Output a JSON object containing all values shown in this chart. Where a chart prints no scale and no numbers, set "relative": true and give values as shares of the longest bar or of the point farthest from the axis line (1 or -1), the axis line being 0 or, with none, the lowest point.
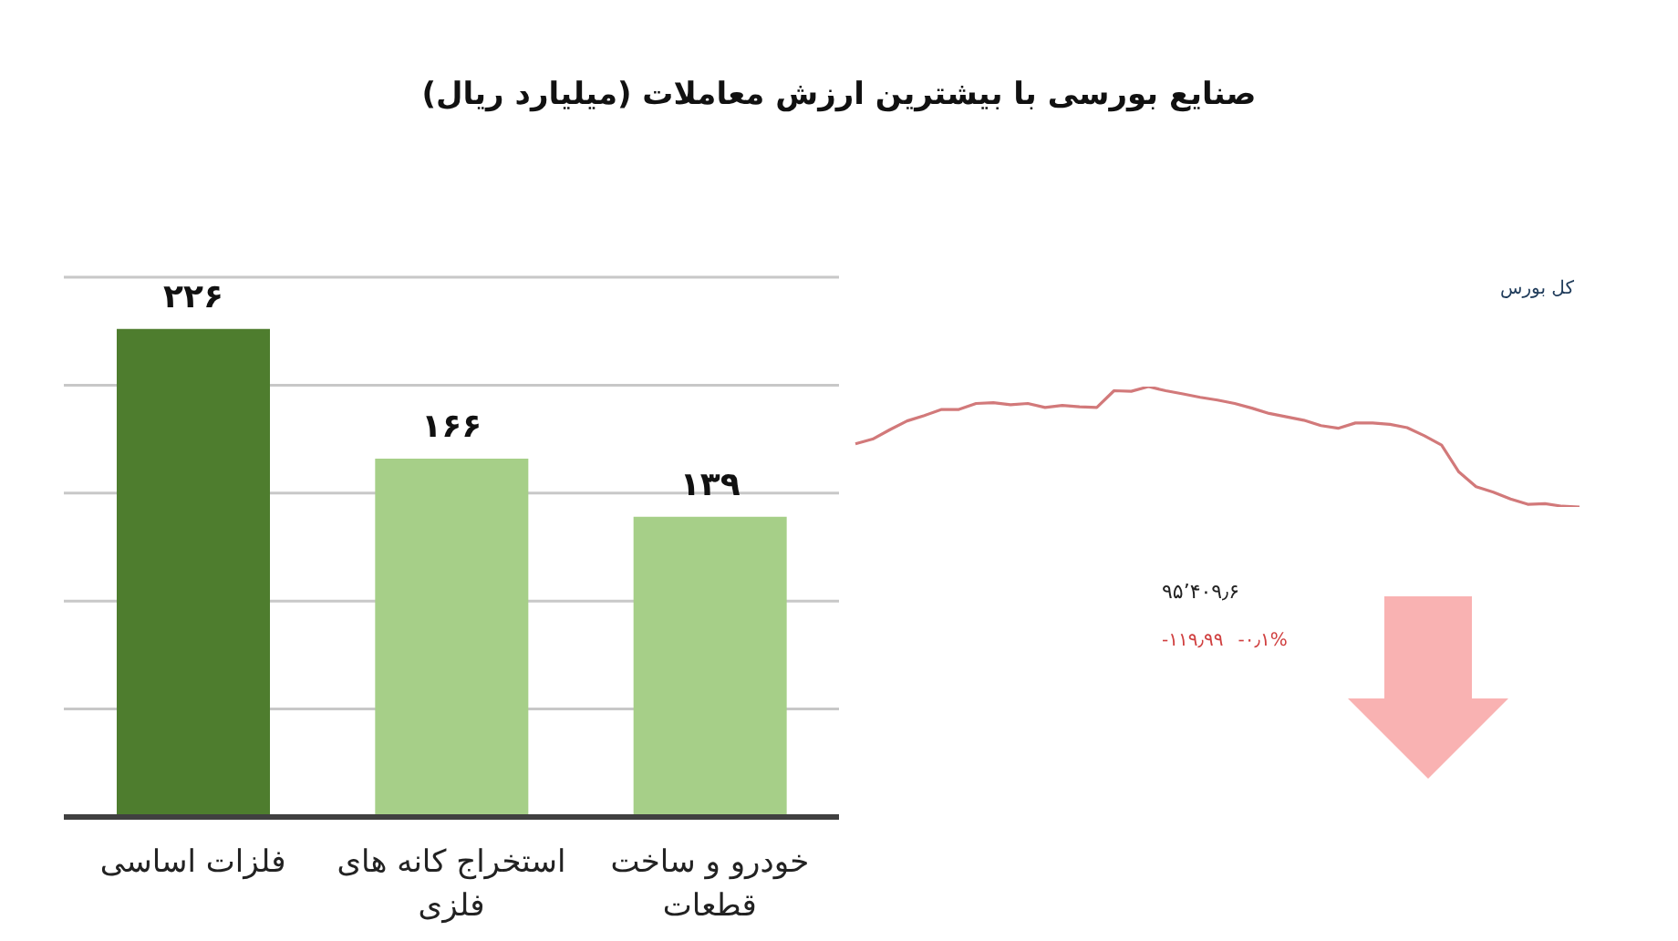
{
  "chart_data": [
    {
      "type": "bar",
      "title": "صنایع بورسی با بیشترین ارزش معاملات  (میلیارد ریال)",
      "categories": [
        "فلزات اساسی",
        "استخراج کانه های فلزی",
        "خودرو و ساخت قطعات"
      ],
      "values": [
        226,
        166,
        139
      ],
      "value_labels": [
        "۲۲۶",
        "۱۶۶",
        "۱۳۹"
      ],
      "colors": [
        "#4e7d2e",
        "#a6cf88",
        "#a6cf88"
      ],
      "ylim": [
        0,
        250
      ],
      "yticks": [
        {
          "value": 0,
          "label": null
        },
        {
          "value": 50,
          "label": null
        },
        {
          "value": 100,
          "label": null
        },
        {
          "value": 150,
          "label": null
        },
        {
          "value": 200,
          "label": null
        },
        {
          "value": 250,
          "label": null
        }
      ],
      "grid": "y",
      "tick_labels": "x"
    },
    {
      "type": "line",
      "title": "کل بورس",
      "relative": true,
      "marker": "none",
      "categories": [
        null,
        null,
        null,
        null,
        null,
        null,
        null,
        null,
        null,
        null,
        null,
        null,
        null,
        null,
        null,
        null,
        null,
        null,
        null,
        null,
        null,
        null,
        null,
        null,
        null,
        null,
        null,
        null,
        null,
        null,
        null,
        null,
        null,
        null,
        null,
        null,
        null,
        null,
        null,
        null,
        null,
        null,
        null
      ],
      "series": [
        {
          "color": "#d2797a",
          "values": [
            0.525,
            0.564,
            0.642,
            0.715,
            0.76,
            0.81,
            0.81,
            0.86,
            0.866,
            0.849,
            0.86,
            0.827,
            0.844,
            0.832,
            0.827,
            0.966,
            0.961,
            1,
            0.966,
            0.939,
            0.911,
            0.888,
            0.86,
            0.821,
            0.777,
            0.749,
            0.721,
            0.676,
            0.654,
            0.698,
            0.698,
            0.687,
            0.659,
            0.592,
            0.514,
            0.291,
            0.168,
            0.123,
            0.067,
            0.022,
            0.028,
            0.006,
            0
          ]
        }
      ],
      "annotations": [
        "۹۵٬۴۰۹٫۶",
        "-۱۱۹٫۹۹",
        "-۰٫۱%"
      ]
    }
  ]
}
